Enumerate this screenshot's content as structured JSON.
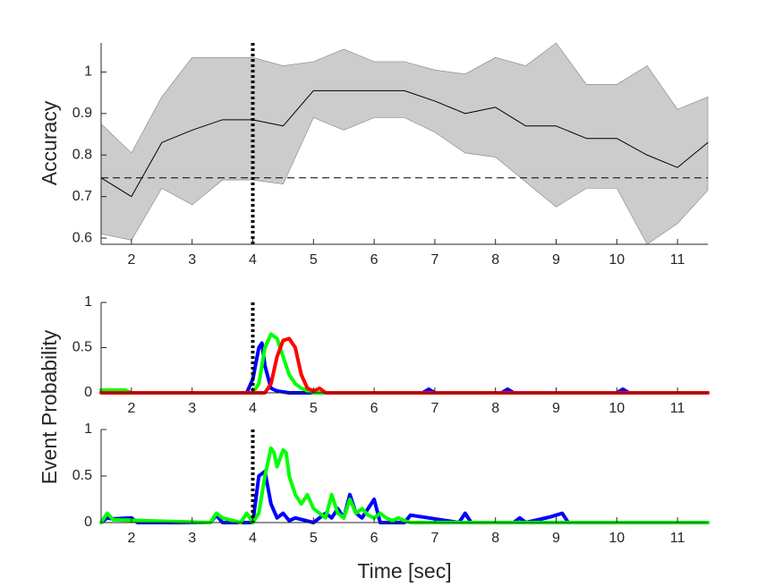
{
  "chart_data": [
    {
      "type": "line",
      "ylabel": "Accuracy",
      "x": [
        1.5,
        2,
        2.5,
        3,
        3.5,
        4,
        4.5,
        5,
        5.5,
        6,
        6.5,
        7,
        7.5,
        8,
        8.5,
        9,
        9.5,
        10,
        10.5,
        11,
        11.5
      ],
      "series": [
        {
          "color": "#000000",
          "values": [
            0.745,
            0.7,
            0.83,
            0.86,
            0.885,
            0.885,
            0.87,
            0.955,
            0.955,
            0.955,
            0.955,
            0.93,
            0.9,
            0.915,
            0.87,
            0.87,
            0.84,
            0.84,
            0.8,
            0.77,
            0.83
          ]
        }
      ],
      "band": {
        "color": "#cccccc",
        "upper": [
          0.875,
          0.805,
          0.94,
          1.035,
          1.035,
          1.035,
          1.015,
          1.025,
          1.055,
          1.025,
          1.025,
          1.005,
          0.995,
          1.035,
          1.015,
          1.07,
          0.97,
          0.97,
          1.015,
          0.91,
          0.94
        ],
        "lower": [
          0.61,
          0.595,
          0.72,
          0.68,
          0.74,
          0.74,
          0.73,
          0.89,
          0.86,
          0.89,
          0.89,
          0.855,
          0.805,
          0.795,
          0.735,
          0.675,
          0.72,
          0.72,
          0.585,
          0.635,
          0.715
        ]
      },
      "reference_line": 0.745,
      "vline": 4,
      "xlim": [
        1.5,
        11.5
      ],
      "xticks": [
        2,
        3,
        4,
        5,
        6,
        7,
        8,
        9,
        10,
        11
      ],
      "ylim": [
        0.585,
        1.07
      ],
      "yticks": [
        0.6,
        0.7,
        0.8,
        0.9,
        1
      ]
    },
    {
      "type": "line",
      "ylabel": "Event Probability",
      "series": [
        {
          "color": "#0000ff",
          "x": [
            1.5,
            1.7,
            1.8,
            3.9,
            4.0,
            4.1,
            4.15,
            4.2,
            4.3,
            4.4,
            4.6,
            6.8,
            6.9,
            7.0,
            8.1,
            8.2,
            8.3,
            10.0,
            10.1,
            10.2,
            11.5
          ],
          "values": [
            0.03,
            0.03,
            0,
            0,
            0.15,
            0.5,
            0.55,
            0.3,
            0.05,
            0.02,
            0,
            0,
            0.04,
            0,
            0,
            0.04,
            0,
            0,
            0.04,
            0,
            0
          ]
        },
        {
          "color": "#00ff00",
          "x": [
            1.5,
            1.9,
            2.0,
            4.0,
            4.1,
            4.2,
            4.3,
            4.4,
            4.5,
            4.6,
            4.7,
            4.8,
            5.0,
            11.5
          ],
          "values": [
            0.03,
            0.03,
            0,
            0,
            0.1,
            0.5,
            0.65,
            0.6,
            0.4,
            0.2,
            0.1,
            0.05,
            0,
            0
          ]
        },
        {
          "color": "#ff0000",
          "x": [
            1.5,
            4.2,
            4.3,
            4.4,
            4.5,
            4.6,
            4.7,
            4.8,
            4.9,
            5.0,
            5.1,
            5.2,
            11.5
          ],
          "values": [
            0,
            0,
            0.1,
            0.4,
            0.58,
            0.6,
            0.5,
            0.2,
            0.05,
            0.02,
            0.05,
            0,
            0
          ]
        }
      ],
      "vline": 4,
      "xlim": [
        1.5,
        11.5
      ],
      "xticks": [
        2,
        3,
        4,
        5,
        6,
        7,
        8,
        9,
        10,
        11
      ],
      "ylim": [
        0,
        1
      ],
      "yticks": [
        0,
        0.5,
        1
      ]
    },
    {
      "type": "line",
      "xlabel": "Time [sec]",
      "series": [
        {
          "color": "#0000ff",
          "x": [
            1.5,
            1.6,
            1.7,
            2.0,
            2.1,
            3.3,
            3.4,
            3.5,
            4.0,
            4.1,
            4.2,
            4.3,
            4.4,
            4.5,
            4.6,
            4.7,
            5.0,
            5.2,
            5.3,
            5.4,
            5.5,
            5.6,
            5.7,
            5.8,
            5.9,
            6.0,
            6.1,
            6.5,
            6.6,
            7.4,
            7.5,
            7.6,
            8.3,
            8.4,
            8.5,
            8.9,
            9.0,
            9.1,
            9.2,
            11.5
          ],
          "values": [
            0,
            0.05,
            0.04,
            0.05,
            0,
            0,
            0.08,
            0,
            0,
            0.5,
            0.55,
            0.2,
            0.05,
            0.1,
            0.02,
            0.05,
            0,
            0.1,
            0.05,
            0.15,
            0.05,
            0.3,
            0.1,
            0.05,
            0.15,
            0.25,
            0,
            0,
            0.08,
            0,
            0.1,
            0,
            0,
            0.05,
            0,
            0.06,
            0.08,
            0.1,
            0,
            0
          ]
        },
        {
          "color": "#00ff00",
          "x": [
            1.5,
            1.6,
            1.7,
            3.3,
            3.4,
            3.5,
            3.8,
            3.9,
            4.0,
            4.1,
            4.2,
            4.3,
            4.35,
            4.4,
            4.5,
            4.55,
            4.6,
            4.7,
            4.8,
            4.9,
            5.0,
            5.1,
            5.2,
            5.3,
            5.4,
            5.5,
            5.6,
            5.7,
            5.8,
            5.9,
            6.0,
            6.1,
            6.2,
            6.3,
            6.4,
            6.5,
            6.6,
            11.5
          ],
          "values": [
            0,
            0.1,
            0.03,
            0,
            0.1,
            0.05,
            0,
            0.1,
            0,
            0.1,
            0.5,
            0.8,
            0.75,
            0.6,
            0.78,
            0.75,
            0.5,
            0.3,
            0.2,
            0.3,
            0.15,
            0.1,
            0.05,
            0.3,
            0.1,
            0.05,
            0.25,
            0.1,
            0.15,
            0.08,
            0.05,
            0.1,
            0.05,
            0.02,
            0.05,
            0.02,
            0,
            0
          ]
        }
      ],
      "vline": 4,
      "xlim": [
        1.5,
        11.5
      ],
      "xticks": [
        2,
        3,
        4,
        5,
        6,
        7,
        8,
        9,
        10,
        11
      ],
      "ylim": [
        0,
        1
      ],
      "yticks": [
        0,
        0.5,
        1
      ]
    }
  ]
}
